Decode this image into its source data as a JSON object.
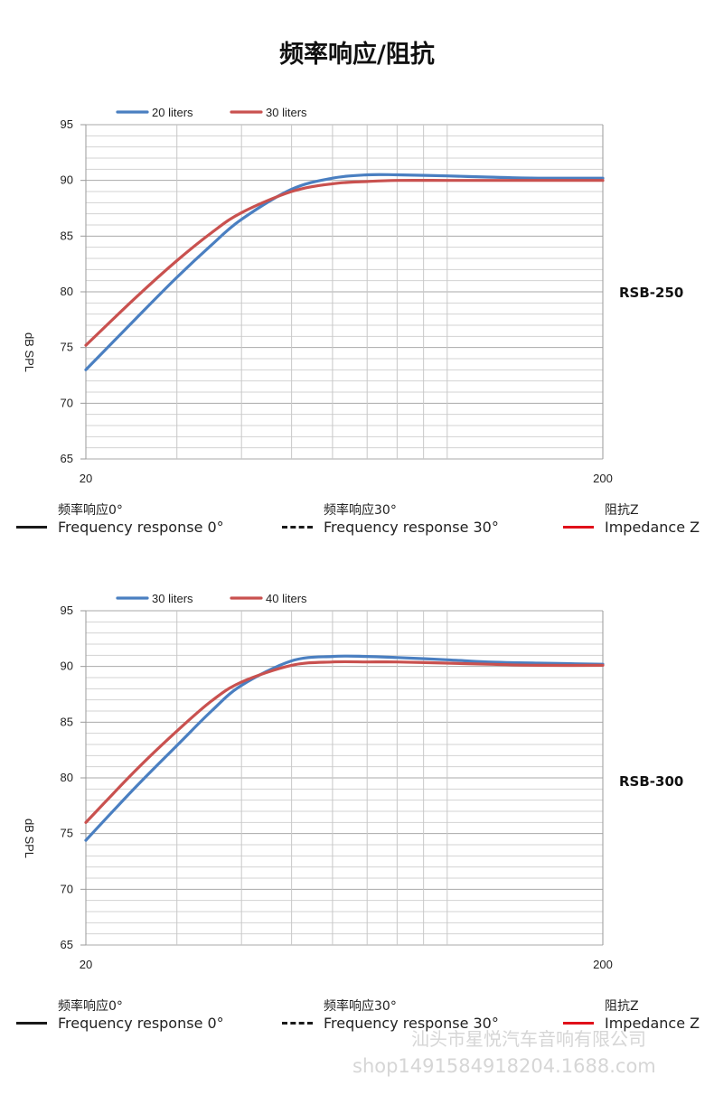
{
  "page": {
    "title": "频率响应/阻抗"
  },
  "chart_data": [
    {
      "type": "line",
      "model_label": "RSB-250",
      "ylabel": "dB SPL",
      "xlabel": "",
      "x_scale": "log",
      "xlim": [
        20,
        200
      ],
      "ylim": [
        65,
        95
      ],
      "y_ticks": [
        65,
        70,
        75,
        80,
        85,
        90,
        95
      ],
      "x_tick_labels": [
        "20",
        "200"
      ],
      "grid": true,
      "legend_position": "top-left",
      "x": [
        20,
        25,
        30,
        35,
        40,
        50,
        60,
        70,
        80,
        100,
        120,
        150,
        200
      ],
      "series": [
        {
          "name": "20 liters",
          "color": "#4a7fc1",
          "values": [
            73.0,
            77.6,
            81.3,
            84.2,
            86.5,
            89.2,
            90.2,
            90.5,
            90.5,
            90.4,
            90.3,
            90.2,
            90.2
          ]
        },
        {
          "name": "30 liters",
          "color": "#c9514f",
          "values": [
            75.2,
            79.5,
            82.8,
            85.3,
            87.1,
            89.0,
            89.7,
            89.9,
            90.0,
            90.0,
            90.0,
            90.0,
            90.0
          ]
        }
      ]
    },
    {
      "type": "line",
      "model_label": "RSB-300",
      "ylabel": "dB SPL",
      "xlabel": "",
      "x_scale": "log",
      "xlim": [
        20,
        200
      ],
      "ylim": [
        65,
        95
      ],
      "y_ticks": [
        65,
        70,
        75,
        80,
        85,
        90,
        95
      ],
      "x_tick_labels": [
        "20",
        "200"
      ],
      "grid": true,
      "legend_position": "top-left",
      "x": [
        20,
        25,
        30,
        35,
        40,
        50,
        60,
        70,
        80,
        100,
        120,
        150,
        200
      ],
      "series": [
        {
          "name": "30 liters",
          "color": "#4a7fc1",
          "values": [
            74.4,
            79.2,
            82.9,
            86.0,
            88.3,
            90.5,
            90.9,
            90.9,
            90.8,
            90.6,
            90.4,
            90.3,
            90.2
          ]
        },
        {
          "name": "40 liters",
          "color": "#c9514f",
          "values": [
            76.0,
            80.7,
            84.2,
            86.9,
            88.6,
            90.1,
            90.4,
            90.4,
            90.4,
            90.3,
            90.2,
            90.1,
            90.1
          ]
        }
      ]
    }
  ],
  "keys": [
    {
      "cn": "频率响应0°",
      "en": "Frequency response 0°",
      "color": "#1a1a1a",
      "style": "solid"
    },
    {
      "cn": "频率响应30°",
      "en": "Frequency response 30°",
      "color": "#1a1a1a",
      "style": "dashed"
    },
    {
      "cn": "阻抗Z",
      "en": "Impedance Z",
      "color": "#e0101a",
      "style": "solid"
    }
  ],
  "watermark": {
    "company": "汕头市星悦汽车音响有限公司",
    "shop": "shop1491584918204.1688.com"
  }
}
